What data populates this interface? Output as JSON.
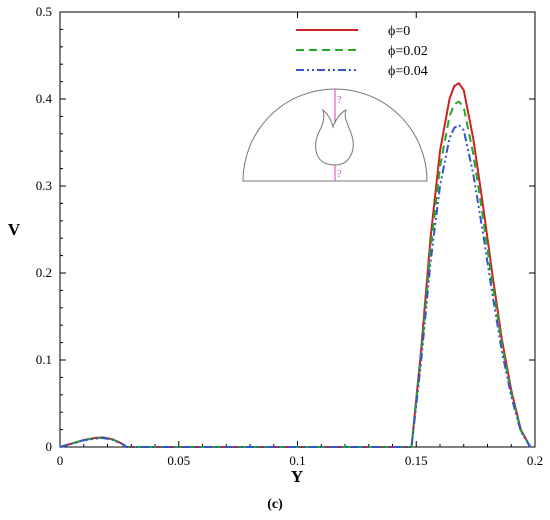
{
  "caption": "(c)",
  "chart_data": {
    "type": "line",
    "xlabel": "Y",
    "ylabel": "V",
    "xlim": [
      0,
      0.2
    ],
    "ylim": [
      0,
      0.5
    ],
    "xticks": [
      0,
      0.05,
      0.1,
      0.15,
      0.2
    ],
    "yticks": [
      0,
      0.1,
      0.2,
      0.3,
      0.4,
      0.5
    ],
    "xtick_labels": [
      "0",
      "0.05",
      "0.1",
      "0.15",
      "0.2"
    ],
    "ytick_labels": [
      "0",
      "0.1",
      "0.2",
      "0.3",
      "0.4",
      "0.5"
    ],
    "grid": false,
    "legend_position": "top-right",
    "series": [
      {
        "name": "ϕ=0",
        "color": "#cc2222",
        "dash": "solid",
        "x": [
          0,
          0.005,
          0.01,
          0.015,
          0.018,
          0.022,
          0.026,
          0.028,
          0.148,
          0.152,
          0.156,
          0.16,
          0.164,
          0.166,
          0.168,
          0.17,
          0.174,
          0.178,
          0.182,
          0.186,
          0.19,
          0.194,
          0.198
        ],
        "y": [
          0,
          0.004,
          0.008,
          0.0105,
          0.011,
          0.009,
          0.004,
          0,
          0,
          0.11,
          0.24,
          0.34,
          0.4,
          0.415,
          0.418,
          0.41,
          0.355,
          0.28,
          0.2,
          0.125,
          0.065,
          0.02,
          0
        ]
      },
      {
        "name": "ϕ=0.02",
        "color": "#22aa22",
        "dash": "dashed",
        "x": [
          0,
          0.005,
          0.01,
          0.015,
          0.018,
          0.022,
          0.026,
          0.028,
          0.148,
          0.152,
          0.156,
          0.16,
          0.164,
          0.166,
          0.168,
          0.17,
          0.174,
          0.178,
          0.182,
          0.186,
          0.19,
          0.194,
          0.198
        ],
        "y": [
          0,
          0.004,
          0.008,
          0.0102,
          0.0107,
          0.0088,
          0.004,
          0,
          0,
          0.104,
          0.227,
          0.322,
          0.38,
          0.394,
          0.397,
          0.39,
          0.337,
          0.266,
          0.19,
          0.119,
          0.062,
          0.019,
          0
        ]
      },
      {
        "name": "ϕ=0.04",
        "color": "#3355cc",
        "dash": "dashdotdot",
        "x": [
          0,
          0.005,
          0.01,
          0.015,
          0.018,
          0.022,
          0.026,
          0.028,
          0.148,
          0.152,
          0.156,
          0.16,
          0.164,
          0.166,
          0.168,
          0.17,
          0.174,
          0.178,
          0.182,
          0.186,
          0.19,
          0.194,
          0.198
        ],
        "y": [
          0,
          0.0038,
          0.0077,
          0.0098,
          0.0103,
          0.0085,
          0.0038,
          0,
          0,
          0.097,
          0.212,
          0.3,
          0.355,
          0.367,
          0.37,
          0.364,
          0.314,
          0.248,
          0.177,
          0.111,
          0.058,
          0.018,
          0
        ]
      }
    ],
    "inset": {
      "marker_label_top": "?",
      "marker_label_bottom": "?"
    }
  }
}
